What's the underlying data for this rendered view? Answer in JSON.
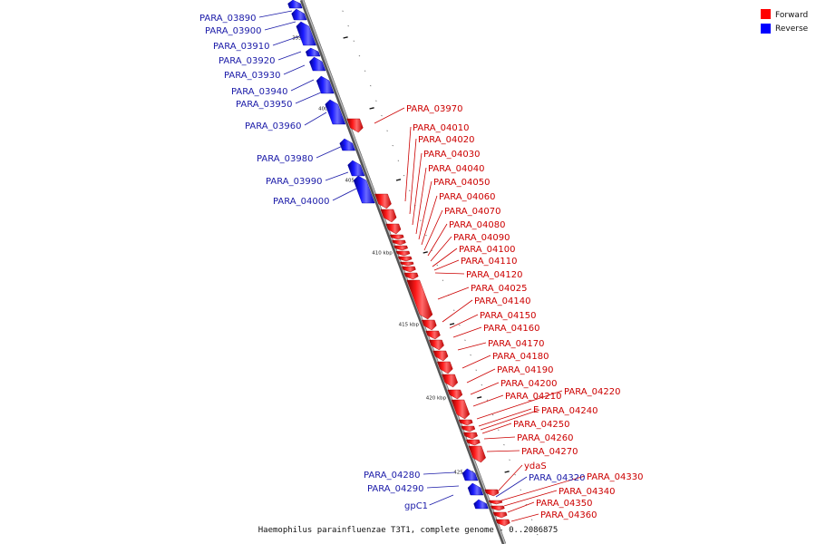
{
  "caption": "Haemophilus parainfluenzae T3T1, complete genome - 0..2086875",
  "legend": [
    {
      "label": "Forward",
      "color": "#ff0000"
    },
    {
      "label": "Reverse",
      "color": "#0000ff"
    }
  ],
  "scale_ticks": [
    "395 kbp",
    "400 kbp",
    "405 kbp",
    "410 kbp",
    "415 kbp",
    "420 kbp",
    "425 kbp"
  ],
  "reverse_labels": [
    "PARA_03890",
    "PARA_03900",
    "PARA_03910",
    "PARA_03920",
    "PARA_03930",
    "PARA_03940",
    "PARA_03950",
    "PARA_03960",
    "PARA_03980",
    "PARA_03990",
    "PARA_04000",
    "PARA_04280",
    "PARA_04290",
    "gpC1",
    "PARA_04320"
  ],
  "forward_labels": [
    "PARA_03970",
    "PARA_04010",
    "PARA_04020",
    "PARA_04030",
    "PARA_04040",
    "PARA_04050",
    "PARA_04060",
    "PARA_04070",
    "PARA_04080",
    "PARA_04090",
    "PARA_04100",
    "PARA_04110",
    "PARA_04120",
    "PARA_04025",
    "PARA_04140",
    "PARA_04150",
    "PARA_04160",
    "PARA_04170",
    "PARA_04180",
    "PARA_04190",
    "PARA_04200",
    "PARA_04210",
    "PARA_04220",
    "E",
    "PARA_04240",
    "PARA_04250",
    "PARA_04260",
    "PARA_04270",
    "ydaS",
    "PARA_04330",
    "PARA_04340",
    "PARA_04350",
    "PARA_04360"
  ]
}
